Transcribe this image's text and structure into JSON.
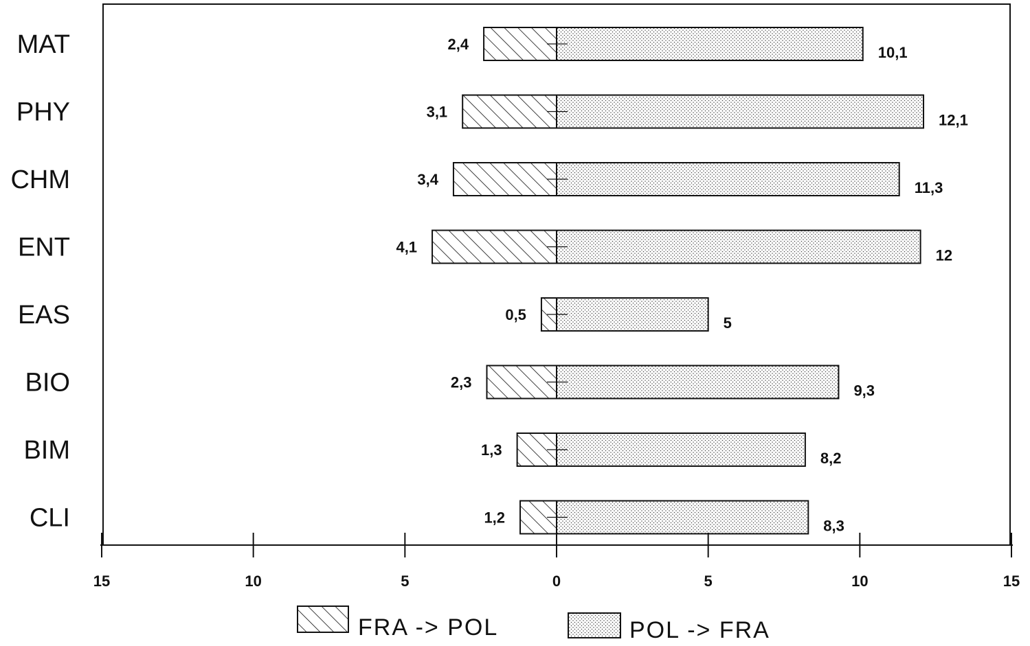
{
  "chart_data": {
    "type": "bar",
    "orientation": "horizontal",
    "stacking": "diverging",
    "categories": [
      "MAT",
      "PHY",
      "CHM",
      "ENT",
      "EAS",
      "BIO",
      "BIM",
      "CLI"
    ],
    "series": [
      {
        "name": "FRA -> POL",
        "direction": "left",
        "fill": "diagonal-hatch",
        "values": [
          2.4,
          3.1,
          3.4,
          4.1,
          0.5,
          2.3,
          1.3,
          1.2
        ],
        "labels": [
          "2,4",
          "3,1",
          "3,4",
          "4,1",
          "0,5",
          "2,3",
          "1,3",
          "1,2"
        ]
      },
      {
        "name": "POL -> FRA",
        "direction": "right",
        "fill": "dot-stipple",
        "values": [
          10.1,
          12.1,
          11.3,
          12,
          5,
          9.3,
          8.2,
          8.3
        ],
        "labels": [
          "10,1",
          "12,1",
          "11,3",
          "12",
          "5",
          "9,3",
          "8,2",
          "8,3"
        ]
      }
    ],
    "xlim": [
      -15,
      15
    ],
    "xticks": [
      -15,
      -10,
      -5,
      0,
      5,
      10,
      15
    ],
    "xtick_labels": [
      "15",
      "10",
      "5",
      "0",
      "5",
      "10",
      "15"
    ],
    "title": "",
    "xlabel": "",
    "ylabel": "",
    "grid": false,
    "legend_position": "bottom-center",
    "colors": {
      "ink": "#111111",
      "background": "#ffffff"
    }
  }
}
